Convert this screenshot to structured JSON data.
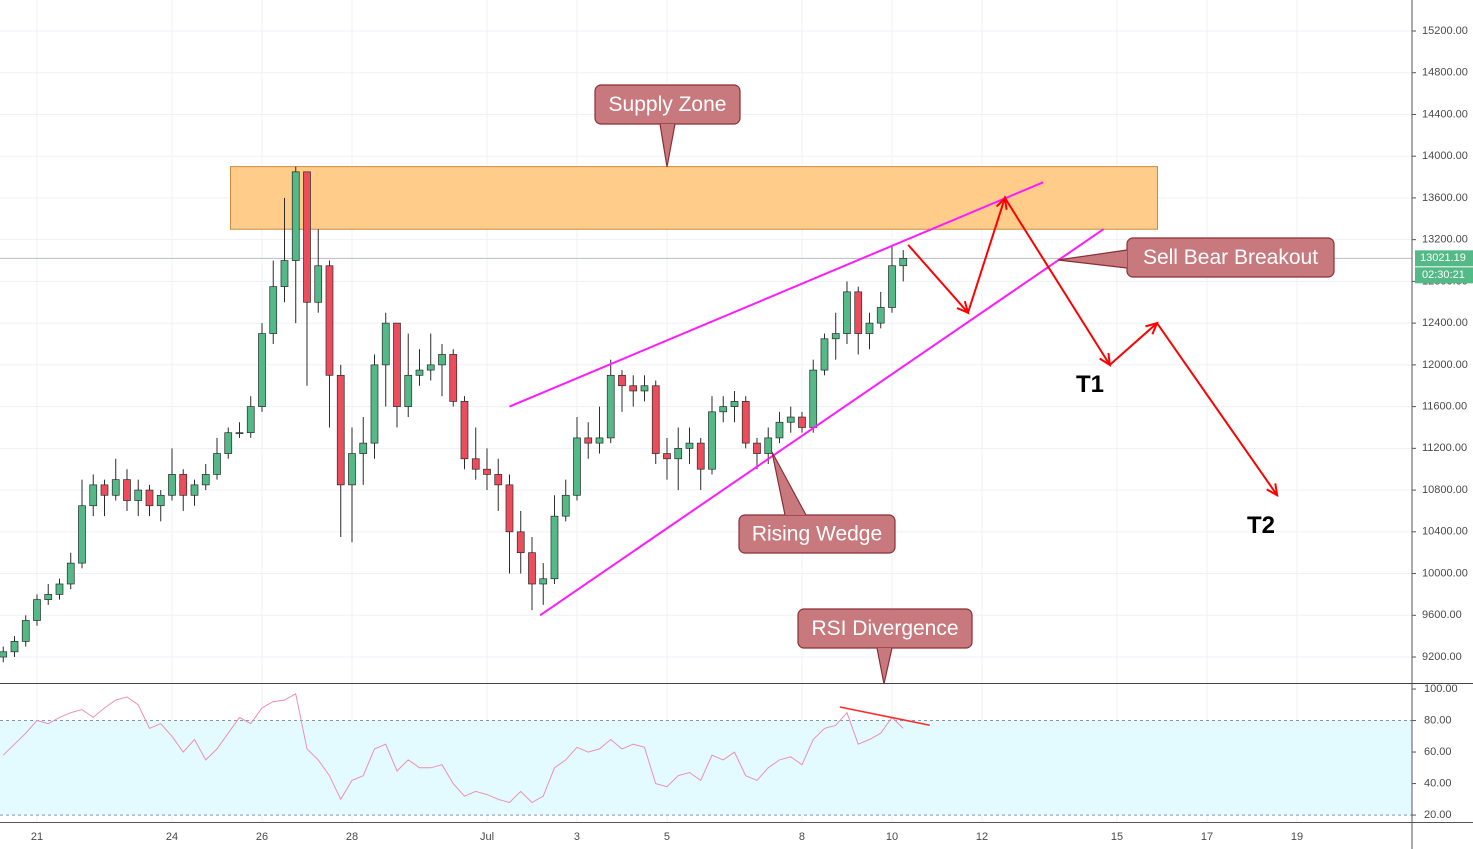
{
  "chart_data": [
    {
      "type": "candlestick",
      "x": [
        -0.75,
        -0.5,
        -0.25,
        0,
        0.25,
        0.5,
        0.75,
        1,
        1.25,
        1.5,
        1.75,
        2,
        2.25,
        2.5,
        2.75,
        3,
        3.25,
        3.5,
        3.75,
        4,
        4.25,
        4.5,
        4.75,
        5,
        5.25,
        5.5,
        5.75,
        6,
        6.25,
        6.5,
        6.75,
        7,
        7.25,
        7.5,
        7.75,
        8,
        8.25,
        8.5,
        8.75,
        9,
        9.25,
        9.5,
        9.75,
        10,
        10.25,
        10.5,
        10.75,
        11,
        11.25,
        11.5,
        11.75,
        12,
        12.25,
        12.5,
        12.75,
        13,
        13.25,
        13.5,
        13.75,
        14,
        14.25,
        14.5,
        14.75,
        15,
        15.25,
        15.5,
        15.75,
        16,
        16.25,
        16.5,
        16.75,
        17,
        17.25,
        17.5,
        17.75,
        18,
        18.25,
        18.5,
        18.75,
        19,
        19.25
      ],
      "open": [
        9200,
        9250,
        9350,
        9550,
        9750,
        9800,
        9900,
        10100,
        10650,
        10850,
        10750,
        10900,
        10700,
        10800,
        10650,
        10750,
        10950,
        10750,
        10850,
        10950,
        11150,
        11350,
        11350,
        11600,
        12300,
        12750,
        13000,
        13850,
        12600,
        12950,
        11900,
        10850,
        11150,
        11250,
        12000,
        12400,
        11600,
        11900,
        11950,
        12000,
        12100,
        11650,
        11100,
        11000,
        10950,
        10850,
        10400,
        10200,
        9900,
        9950,
        10550,
        10750,
        11300,
        11250,
        11300,
        11900,
        11800,
        11750,
        11800,
        11150,
        11100,
        11200,
        11250,
        11000,
        11550,
        11600,
        11650,
        11250,
        11150,
        11300,
        11450,
        11500,
        11400,
        11950,
        12250,
        12300,
        12700,
        12300,
        12400,
        12550,
        12950
      ],
      "high": [
        9300,
        9400,
        9600,
        9800,
        9900,
        9950,
        10200,
        10900,
        10950,
        10900,
        11100,
        11000,
        10900,
        10850,
        10800,
        11200,
        11000,
        10900,
        11050,
        11300,
        11400,
        11450,
        11700,
        12400,
        13000,
        13600,
        13900,
        13850,
        13300,
        13000,
        12000,
        11400,
        11500,
        12100,
        12500,
        12400,
        12300,
        12150,
        12300,
        12200,
        12150,
        11700,
        11400,
        11200,
        11100,
        10950,
        10600,
        10350,
        10100,
        10750,
        10900,
        11500,
        11450,
        11600,
        12050,
        11950,
        11900,
        11900,
        11850,
        11300,
        11400,
        11400,
        11300,
        11700,
        11700,
        11750,
        11700,
        11300,
        11400,
        11550,
        11600,
        11550,
        12050,
        12300,
        12500,
        12800,
        12750,
        12500,
        12700,
        13150,
        13100
      ],
      "low": [
        9150,
        9200,
        9300,
        9500,
        9700,
        9750,
        9850,
        10050,
        10550,
        10550,
        10700,
        10600,
        10550,
        10550,
        10500,
        10700,
        10600,
        10650,
        10800,
        10900,
        11100,
        11300,
        11300,
        11550,
        12200,
        12600,
        12400,
        11800,
        12500,
        11400,
        10350,
        10300,
        10850,
        11100,
        11600,
        11400,
        11500,
        11800,
        11850,
        11700,
        11600,
        11000,
        10900,
        10800,
        10600,
        10000,
        10000,
        9650,
        9700,
        9900,
        10500,
        10700,
        11100,
        11150,
        11250,
        11550,
        11600,
        11650,
        11050,
        10900,
        10800,
        11050,
        10800,
        10950,
        11450,
        11450,
        11200,
        11000,
        11050,
        11250,
        11350,
        11350,
        11350,
        11900,
        12050,
        12200,
        12100,
        12150,
        12350,
        12500,
        12800
      ],
      "close": [
        9250,
        9350,
        9550,
        9750,
        9800,
        9900,
        10100,
        10650,
        10850,
        10750,
        10900,
        10700,
        10800,
        10650,
        10750,
        10950,
        10750,
        10850,
        10950,
        11150,
        11350,
        11350,
        11600,
        12300,
        12750,
        13000,
        13850,
        12600,
        12950,
        11900,
        10850,
        11150,
        11250,
        12000,
        12400,
        11600,
        11900,
        11950,
        12000,
        12100,
        11650,
        11100,
        11000,
        10950,
        10850,
        10400,
        10200,
        9900,
        9950,
        10550,
        10750,
        11300,
        11250,
        11300,
        11900,
        11800,
        11750,
        11800,
        11150,
        11100,
        11200,
        11250,
        11000,
        11550,
        11600,
        11650,
        11250,
        11150,
        11300,
        11450,
        11500,
        11400,
        11950,
        12250,
        12300,
        12700,
        12300,
        12400,
        12550,
        12950,
        13021.19
      ],
      "up_color": "#53b987",
      "down_color": "#eb4d5c",
      "xlim": [
        -0.822,
        30.556
      ],
      "ylim": [
        8951,
        15497
      ],
      "xticks": [
        {
          "value": 0,
          "label": "21"
        },
        {
          "value": 3,
          "label": "24"
        },
        {
          "value": 5,
          "label": "26"
        },
        {
          "value": 7,
          "label": "28"
        },
        {
          "value": 10,
          "label": "Jul"
        },
        {
          "value": 12,
          "label": "3"
        },
        {
          "value": 14,
          "label": "5"
        },
        {
          "value": 17,
          "label": "8"
        },
        {
          "value": 19,
          "label": "10"
        },
        {
          "value": 21,
          "label": "12"
        },
        {
          "value": 24,
          "label": "15"
        },
        {
          "value": 26,
          "label": "17"
        },
        {
          "value": 28,
          "label": "19"
        }
      ],
      "yticks": [
        {
          "value": 9200,
          "label": "9200.00"
        },
        {
          "value": 9600,
          "label": "9600.00"
        },
        {
          "value": 10000,
          "label": "10000.00"
        },
        {
          "value": 10400,
          "label": "10400.00"
        },
        {
          "value": 10800,
          "label": "10800.00"
        },
        {
          "value": 11200,
          "label": "11200.00"
        },
        {
          "value": 11600,
          "label": "11600.00"
        },
        {
          "value": 12000,
          "label": "12000.00"
        },
        {
          "value": 12400,
          "label": "12400.00"
        },
        {
          "value": 12800,
          "label": "12800.00"
        },
        {
          "value": 13200,
          "label": "13200.00"
        },
        {
          "value": 13600,
          "label": "13600.00"
        },
        {
          "value": 14000,
          "label": "14000.00"
        },
        {
          "value": 14400,
          "label": "14400.00"
        },
        {
          "value": 14800,
          "label": "14800.00"
        },
        {
          "value": 15200,
          "label": "15200.00"
        }
      ],
      "grid": true,
      "last_price": {
        "value": 13021.19,
        "label": "13021.19"
      },
      "countdown": "02:30:21",
      "price_box_color": "#53b987",
      "annotations": {
        "supply_zone": {
          "label": "Supply Zone",
          "xlim": [
            4.3,
            24.9
          ],
          "ylim": [
            13300,
            13900
          ],
          "color": "#ffcc8a"
        },
        "wedge": {
          "label": "Rising Wedge",
          "color": "#ff1aff",
          "upper": {
            "x": [
              10.5,
              22.36
            ],
            "y": [
              11600,
              13750
            ]
          },
          "lower": {
            "x": [
              11.18,
              23.7
            ],
            "y": [
              9600,
              13300
            ]
          }
        },
        "projection": {
          "label": "Sell Bear Breakout",
          "color": "#ff0000",
          "x": [
            19.36,
            20.69,
            21.51,
            23.84,
            24.89,
            27.56
          ],
          "y": [
            13150,
            12500,
            13600,
            12000,
            12400,
            10750
          ]
        },
        "targets": [
          {
            "label": "T1",
            "x": 23.4,
            "y": 11800
          },
          {
            "label": "T2",
            "x": 27.2,
            "y": 10450
          }
        ]
      }
    },
    {
      "type": "line",
      "name": "RSI",
      "values": [
        58,
        65,
        72,
        80,
        78,
        82,
        85,
        87,
        82,
        88,
        93,
        95,
        90,
        75,
        78,
        70,
        60,
        68,
        55,
        62,
        72,
        82,
        78,
        88,
        92,
        93,
        97,
        62,
        55,
        45,
        30,
        42,
        45,
        62,
        65,
        48,
        55,
        50,
        50,
        52,
        40,
        32,
        35,
        33,
        30,
        28,
        35,
        28,
        32,
        50,
        55,
        63,
        60,
        62,
        68,
        62,
        65,
        63,
        40,
        38,
        45,
        47,
        42,
        58,
        55,
        60,
        45,
        42,
        50,
        55,
        57,
        52,
        68,
        75,
        77,
        85,
        65,
        68,
        72,
        82,
        75
      ],
      "color": "#ee8fb4",
      "ylim": [
        15.6,
        103.2
      ],
      "yticks": [
        {
          "value": 20,
          "label": "20.00"
        },
        {
          "value": 40,
          "label": "40.00"
        },
        {
          "value": 60,
          "label": "60.00"
        },
        {
          "value": 80,
          "label": "80.00"
        },
        {
          "value": 100,
          "label": "100.00"
        }
      ],
      "band": [
        20,
        80
      ],
      "band_color": "#e3fbff",
      "divergence": {
        "label": "RSI Divergence",
        "x": [
          17.84,
          19.84
        ],
        "y": [
          88.6,
          77
        ],
        "color": "#ff2a2a"
      }
    }
  ]
}
